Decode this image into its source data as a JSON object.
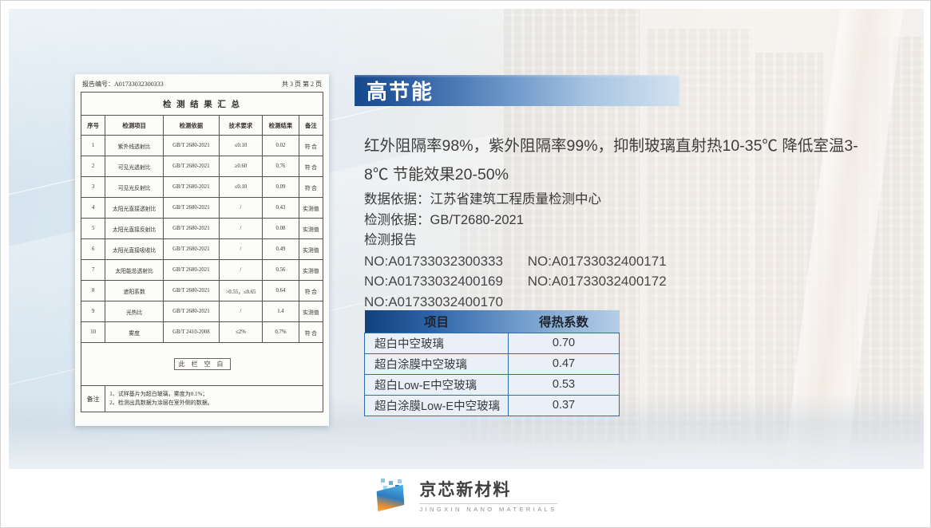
{
  "colors": {
    "accent_blue": "#16488C",
    "banner_gradient_end": "#D3E2F0",
    "table_border_blue": "#2E6DB4",
    "table_row_bg": "#E9F0F8",
    "logo_blue": "#2F8FD0",
    "logo_orange": "#F6A833"
  },
  "report_doc": {
    "number_label": "报告编号：A01733032300333",
    "page_label": "共 3 页 第 2 页",
    "title": "检 测 结 果 汇 总",
    "columns": [
      "序号",
      "检测项目",
      "检测依据",
      "技术要求",
      "检测结果",
      "备注"
    ],
    "rows": [
      [
        "1",
        "紫外线透射比",
        "GB/T 2680-2021",
        "≤0.10",
        "0.02",
        "符 合"
      ],
      [
        "2",
        "可见光透射比",
        "GB/T 2680-2021",
        "≥0.60",
        "0.76",
        "符 合"
      ],
      [
        "3",
        "可见光反射比",
        "GB/T 2680-2021",
        "≤0.10",
        "0.09",
        "符 合"
      ],
      [
        "4",
        "太阳光直接透射比",
        "GB/T 2680-2021",
        "/",
        "0.43",
        "实测值"
      ],
      [
        "5",
        "太阳光直接反射比",
        "GB/T 2680-2021",
        "/",
        "0.08",
        "实测值"
      ],
      [
        "6",
        "太阳光直接吸收比",
        "GB/T 2680-2021",
        "/",
        "0.49",
        "实测值"
      ],
      [
        "7",
        "太阳能总透射比",
        "GB/T 2680-2021",
        "/",
        "0.56",
        "实测值"
      ],
      [
        "8",
        "遮阳系数",
        "GB/T 2680-2021",
        ">0.55，≤0.65",
        "0.64",
        "符 合"
      ],
      [
        "9",
        "光热比",
        "GB/T 2680-2021",
        "/",
        "1.4",
        "实测值"
      ],
      [
        "10",
        "雾度",
        "GB/T 2410-2008",
        "≤2%",
        "0.7%",
        "符 合"
      ]
    ],
    "blank_label": "此 栏 空 白",
    "note_label": "备注",
    "note_line1": "1、试样基片为超白玻璃，雾度为0.1%；",
    "note_line2": "2、检测出具数据为涂层在室外侧的数据。"
  },
  "content": {
    "section_title": "高节能",
    "intro": "红外阻隔率98%，紫外阻隔率99%，抑制玻璃直射热10-35℃ 降低室温3-8℃ 节能效果20-50%",
    "data_source_line": "数据依据：江苏省建筑工程质量检测中心",
    "test_basis_line": "检测依据：GB/T2680-2021",
    "report_label": "检测报告",
    "report_numbers": {
      "line1_a": "NO:A01733032300333",
      "line1_b": "NO:A01733032400171",
      "line2_a": "NO:A01733032400169",
      "line2_b": "NO:A01733032400172",
      "line3_a": "NO:A01733032400170"
    }
  },
  "heat_table": {
    "columns": [
      "项目",
      "得热系数"
    ],
    "rows": [
      [
        "超白中空玻璃",
        "0.70"
      ],
      [
        "超白涂膜中空玻璃",
        "0.47"
      ],
      [
        "超白Low-E中空玻璃",
        "0.53"
      ],
      [
        "超白涂膜Low-E中空玻璃",
        "0.37"
      ]
    ]
  },
  "logo": {
    "company": "京芯新材料",
    "subtitle": "JINGXIN NANO MATERIALS"
  }
}
